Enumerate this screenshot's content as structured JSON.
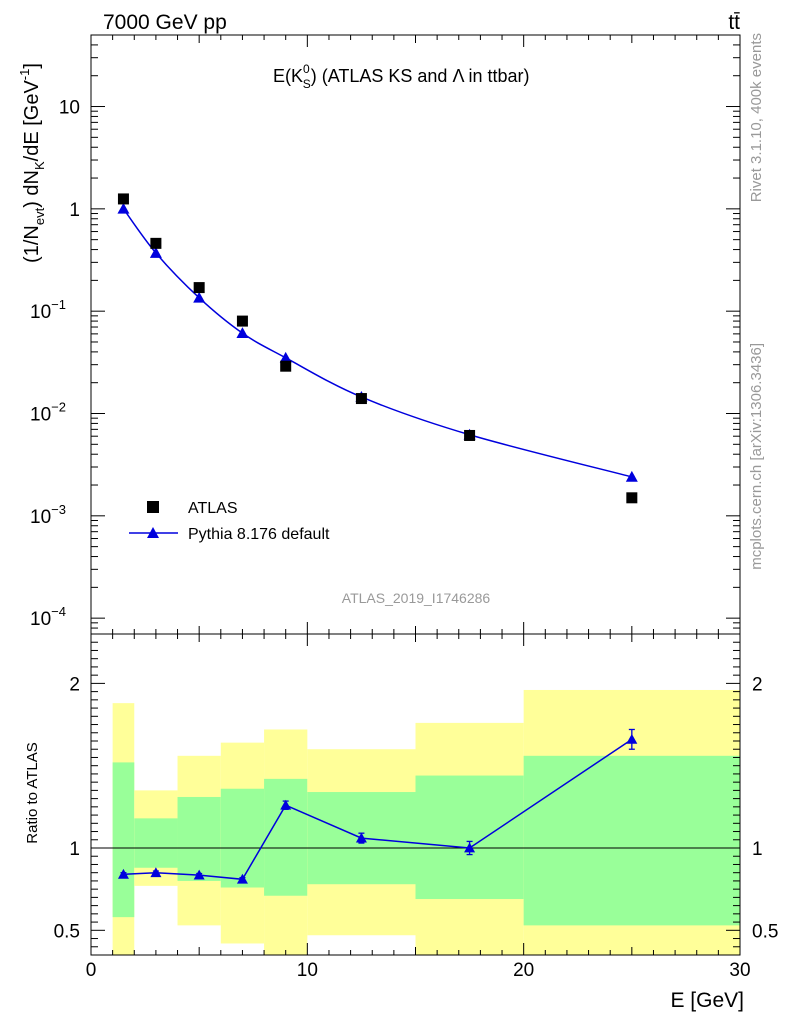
{
  "header": {
    "energy_label": "7000 GeV pp",
    "process_label": "tt̄"
  },
  "side": {
    "rivet_label": "Rivet 3.1.10,  400k events",
    "mcplots_label": "mcplots.cern.ch [arXiv:1306.3436]"
  },
  "chart_data": [
    {
      "type": "scatter",
      "title": "E(K_S^0) (ATLAS KS and Λ in ttbar)",
      "ylabel": "(1/N_evt) dN_K/dE [GeV^-1]",
      "analysis_tag": "ATLAS_2019_I1746286",
      "x_range": [
        0,
        30
      ],
      "y_range": [
        7e-05,
        50
      ],
      "y_scale": "log",
      "y_ticks": [
        {
          "v": 10,
          "base": "10",
          "exp": ""
        },
        {
          "v": 1,
          "base": "1",
          "exp": ""
        },
        {
          "v": 0.1,
          "base": "10",
          "exp": "−1"
        },
        {
          "v": 0.01,
          "base": "10",
          "exp": "−2"
        },
        {
          "v": 0.001,
          "base": "10",
          "exp": "−3"
        },
        {
          "v": 0.0001,
          "base": "10",
          "exp": "−4"
        }
      ],
      "legend_position": "bottom-left",
      "series": [
        {
          "name": "ATLAS",
          "marker": "square",
          "color": "#000000",
          "x": [
            1.5,
            3,
            5,
            7,
            9,
            12.5,
            17.5,
            25
          ],
          "y": [
            1.25,
            0.46,
            0.17,
            0.08,
            0.029,
            0.014,
            0.0061,
            0.0015
          ]
        },
        {
          "name": "Pythia 8.176 default",
          "marker": "triangle",
          "color": "#0000dd",
          "x": [
            1.5,
            3,
            5,
            7,
            9,
            12.5,
            17.5,
            25
          ],
          "y": [
            1.0,
            0.37,
            0.135,
            0.061,
            0.035,
            0.0145,
            0.0062,
            0.0024
          ]
        }
      ]
    },
    {
      "type": "line",
      "ylabel": "Ratio to ATLAS",
      "xlabel": "E [GeV]",
      "x_range": [
        0,
        30
      ],
      "y_range": [
        0.35,
        2.3
      ],
      "x_ticks": [
        0,
        10,
        20,
        30
      ],
      "y_ticks": [
        0.5,
        1,
        2
      ],
      "reference_line": 1,
      "bands": [
        {
          "x0": 1,
          "x1": 2,
          "yellow": [
            0.35,
            1.88
          ],
          "green": [
            0.58,
            1.52
          ]
        },
        {
          "x0": 2,
          "x1": 4,
          "yellow": [
            0.77,
            1.35
          ],
          "green": [
            0.88,
            1.18
          ]
        },
        {
          "x0": 4,
          "x1": 6,
          "yellow": [
            0.53,
            1.56
          ],
          "green": [
            0.8,
            1.31
          ]
        },
        {
          "x0": 6,
          "x1": 8,
          "yellow": [
            0.42,
            1.64
          ],
          "green": [
            0.76,
            1.36
          ]
        },
        {
          "x0": 8,
          "x1": 10,
          "yellow": [
            0.35,
            1.72
          ],
          "green": [
            0.71,
            1.42
          ]
        },
        {
          "x0": 10,
          "x1": 15,
          "yellow": [
            0.47,
            1.6
          ],
          "green": [
            0.78,
            1.34
          ]
        },
        {
          "x0": 15,
          "x1": 20,
          "yellow": [
            0.35,
            1.76
          ],
          "green": [
            0.69,
            1.44
          ]
        },
        {
          "x0": 20,
          "x1": 30,
          "yellow": [
            0.35,
            1.96
          ],
          "green": [
            0.53,
            1.56
          ]
        }
      ],
      "series": [
        {
          "name": "Pythia 8.176 default",
          "color": "#0000dd",
          "x": [
            1.5,
            3,
            5,
            7,
            9,
            12.5,
            17.5,
            25
          ],
          "y": [
            0.84,
            0.85,
            0.835,
            0.81,
            1.26,
            1.06,
            1.0,
            1.66
          ],
          "err": [
            0.01,
            0.01,
            0.01,
            0.01,
            0.025,
            0.03,
            0.04,
            0.06
          ]
        }
      ]
    }
  ]
}
